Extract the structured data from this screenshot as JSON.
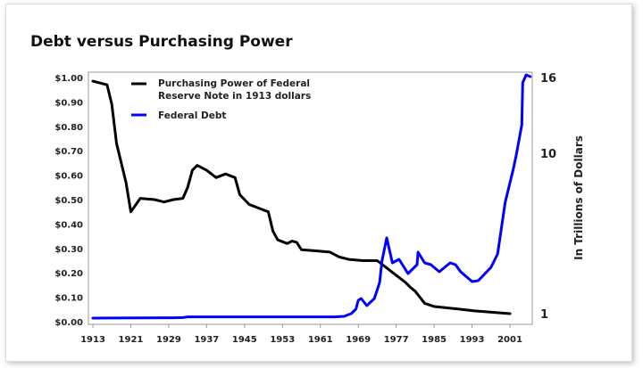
{
  "chart_data": {
    "type": "line",
    "title": "Debt versus Purchasing Power",
    "xlabel": "",
    "ylabel_left": "",
    "ylabel_right": "In Trillions of Dollars",
    "xlim": [
      1913,
      2005
    ],
    "ylim_left": [
      0,
      1
    ],
    "x_ticks": [
      "1913",
      "1921",
      "1929",
      "1937",
      "1945",
      "1953",
      "1961",
      "1969",
      "1977",
      "1985",
      "1993",
      "2001"
    ],
    "y_ticks_left": [
      "$0.00",
      "$0.10",
      "$0.20",
      "$0.30",
      "$0.40",
      "$0.50",
      "$0.60",
      "$0.70",
      "$0.80",
      "$0.90",
      "$1.00"
    ],
    "y_ticks_right": [
      "1",
      "10",
      "16"
    ],
    "legend_placement": "top-left",
    "series": [
      {
        "name": "Purchasing Power of Federal Reserve Note in 1913 dollars",
        "legend_lines": [
          "Purchasing Power of Federal",
          "Reserve Note in 1913 dollars"
        ],
        "axis": "left",
        "color": "#000000",
        "points": [
          [
            1913,
            0.985
          ],
          [
            1916,
            0.97
          ],
          [
            1917,
            0.89
          ],
          [
            1918,
            0.73
          ],
          [
            1920,
            0.57
          ],
          [
            1921,
            0.45
          ],
          [
            1923,
            0.505
          ],
          [
            1926,
            0.5
          ],
          [
            1928,
            0.49
          ],
          [
            1930,
            0.5
          ],
          [
            1932,
            0.505
          ],
          [
            1933,
            0.55
          ],
          [
            1934,
            0.62
          ],
          [
            1935,
            0.64
          ],
          [
            1937,
            0.62
          ],
          [
            1939,
            0.59
          ],
          [
            1941,
            0.605
          ],
          [
            1943,
            0.59
          ],
          [
            1944,
            0.52
          ],
          [
            1946,
            0.48
          ],
          [
            1948,
            0.465
          ],
          [
            1950,
            0.45
          ],
          [
            1951,
            0.37
          ],
          [
            1952,
            0.335
          ],
          [
            1954,
            0.32
          ],
          [
            1955,
            0.33
          ],
          [
            1956,
            0.325
          ],
          [
            1957,
            0.295
          ],
          [
            1960,
            0.29
          ],
          [
            1963,
            0.285
          ],
          [
            1965,
            0.265
          ],
          [
            1967,
            0.255
          ],
          [
            1970,
            0.25
          ],
          [
            1973,
            0.25
          ],
          [
            1975,
            0.22
          ],
          [
            1977,
            0.19
          ],
          [
            1979,
            0.16
          ],
          [
            1980,
            0.14
          ],
          [
            1981,
            0.125
          ],
          [
            1982,
            0.1
          ],
          [
            1983,
            0.075
          ],
          [
            1985,
            0.062
          ],
          [
            1990,
            0.052
          ],
          [
            1993.5,
            0.044
          ],
          [
            2001,
            0.033
          ]
        ]
      },
      {
        "name": "Federal Debt",
        "legend_lines": [
          "Federal Debt"
        ],
        "axis": "right",
        "color": "#0000ff",
        "points": [
          [
            1913,
            0.75
          ],
          [
            1930,
            0.77
          ],
          [
            1932,
            0.78
          ],
          [
            1933,
            0.82
          ],
          [
            1964,
            0.82
          ],
          [
            1966,
            0.85
          ],
          [
            1967.5,
            1.0
          ],
          [
            1968.5,
            1.25
          ],
          [
            1969,
            1.75
          ],
          [
            1969.6,
            1.85
          ],
          [
            1970.8,
            1.45
          ],
          [
            1972.4,
            1.85
          ],
          [
            1973.5,
            2.75
          ],
          [
            1974,
            3.95
          ],
          [
            1975,
            5.25
          ],
          [
            1976.2,
            3.85
          ],
          [
            1977.6,
            4.05
          ],
          [
            1979.5,
            3.25
          ],
          [
            1981.4,
            3.75
          ],
          [
            1981.6,
            4.45
          ],
          [
            1983,
            3.85
          ],
          [
            1984.3,
            3.75
          ],
          [
            1986.1,
            3.35
          ],
          [
            1988.4,
            3.85
          ],
          [
            1989.5,
            3.75
          ],
          [
            1990.6,
            3.35
          ],
          [
            1993,
            2.8
          ],
          [
            1994.3,
            2.85
          ],
          [
            1997,
            3.6
          ],
          [
            1998.4,
            4.35
          ],
          [
            2000,
            7.25
          ],
          [
            2001.7,
            9.1
          ],
          [
            2002.3,
            9.85
          ],
          [
            2003.5,
            12.26
          ],
          [
            2003.7,
            15.58
          ],
          [
            2004.4,
            16.2
          ],
          [
            2005.3,
            16.07
          ]
        ]
      }
    ]
  }
}
